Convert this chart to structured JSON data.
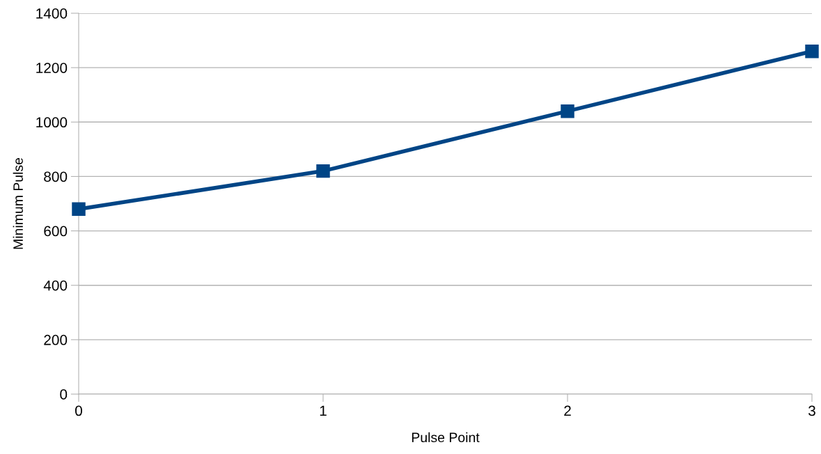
{
  "chart_data": {
    "type": "line",
    "xlabel": "Pulse Point",
    "ylabel": "Minimum Pulse",
    "x": [
      0,
      1,
      2,
      3
    ],
    "series": [
      {
        "color": "#004586",
        "values": [
          680,
          820,
          1040,
          1260
        ]
      }
    ],
    "xlim": [
      0,
      3
    ],
    "xticks": [
      0,
      1,
      2,
      3
    ],
    "ylim": [
      0,
      1400
    ],
    "yticks": [
      0,
      200,
      400,
      600,
      800,
      1000,
      1200,
      1400
    ],
    "grid": "y",
    "marker": "square",
    "line_style": "solid",
    "legend": false
  }
}
